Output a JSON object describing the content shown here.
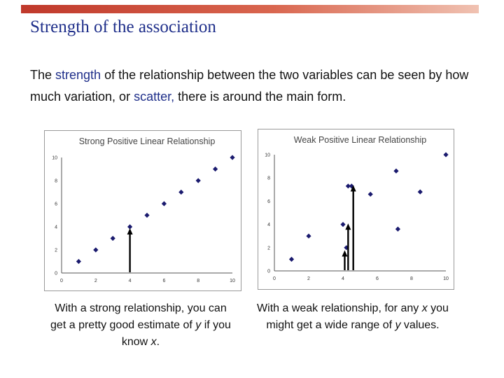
{
  "slide": {
    "title": "Strength of the association",
    "intro": {
      "t1": "The ",
      "strength": "strength",
      "t2": " of the relationship between the two variables can be seen by how much variation, or ",
      "scatter": "scatter,",
      "t3": " there is around the main form."
    },
    "caption_left": {
      "a": "With a strong relationship, you can get a pretty good estimate of ",
      "y": "y",
      "b": " if you know ",
      "x": "x",
      "c": "."
    },
    "caption_right": {
      "a": "With a weak relationship, for any ",
      "x": "x",
      "b": " you might get a wide range of ",
      "y": "y",
      "c": " values."
    }
  },
  "colors": {
    "title": "#1f2f8a",
    "highlight": "#1f2f8a",
    "point": "#1a1a6e",
    "arrow": "#000000"
  },
  "chart_data": [
    {
      "type": "scatter",
      "title": "Strong Positive Linear Relationship",
      "xlim": [
        0,
        10
      ],
      "ylim": [
        0,
        10
      ],
      "xticks": [
        0,
        2,
        4,
        6,
        8,
        10
      ],
      "yticks": [
        0,
        2,
        4,
        6,
        8,
        10
      ],
      "grid": false,
      "points": [
        {
          "x": 1,
          "y": 1
        },
        {
          "x": 2,
          "y": 2
        },
        {
          "x": 3,
          "y": 3
        },
        {
          "x": 4,
          "y": 4
        },
        {
          "x": 5,
          "y": 5
        },
        {
          "x": 6,
          "y": 6
        },
        {
          "x": 7,
          "y": 7
        },
        {
          "x": 8,
          "y": 8
        },
        {
          "x": 9,
          "y": 9
        },
        {
          "x": 10,
          "y": 10
        }
      ],
      "arrows": [
        {
          "x": 4,
          "y": 4
        }
      ]
    },
    {
      "type": "scatter",
      "title": "Weak Positive Linear Relationship",
      "xlim": [
        0,
        10
      ],
      "ylim": [
        0,
        10
      ],
      "xticks": [
        0,
        2,
        4,
        6,
        8,
        10
      ],
      "yticks": [
        0,
        2,
        4,
        6,
        8,
        10
      ],
      "grid": false,
      "points": [
        {
          "x": 1,
          "y": 1
        },
        {
          "x": 2,
          "y": 3
        },
        {
          "x": 4,
          "y": 4
        },
        {
          "x": 4.2,
          "y": 2
        },
        {
          "x": 4.3,
          "y": 7.3
        },
        {
          "x": 4.5,
          "y": 7.3
        },
        {
          "x": 5.6,
          "y": 6.6
        },
        {
          "x": 7.1,
          "y": 8.6
        },
        {
          "x": 7.2,
          "y": 3.6
        },
        {
          "x": 8.5,
          "y": 6.8
        },
        {
          "x": 10,
          "y": 10
        }
      ],
      "arrows": [
        {
          "x": 4.1,
          "y": 1.9
        },
        {
          "x": 4.3,
          "y": 4.2
        },
        {
          "x": 4.6,
          "y": 7.5
        }
      ]
    }
  ]
}
